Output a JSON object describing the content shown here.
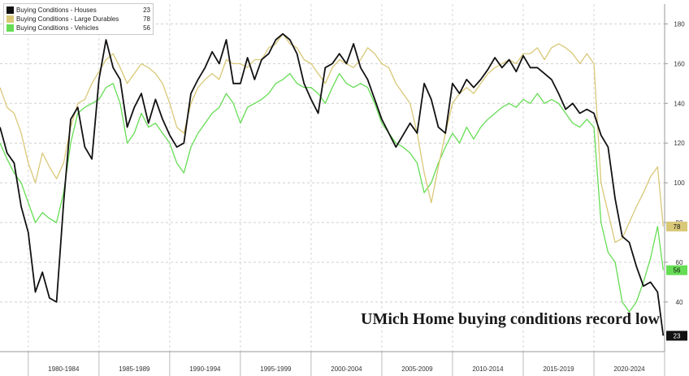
{
  "chart_data": {
    "type": "line",
    "annotation": "UMich Home buying conditions record low",
    "ylim": [
      15,
      190
    ],
    "y_ticks": [
      40,
      60,
      80,
      100,
      120,
      140,
      160,
      180
    ],
    "y_tick_labels": [
      "40",
      "60",
      "80",
      "100",
      "120",
      "140",
      "160",
      "180"
    ],
    "xlim": [
      1978.0,
      2025.0
    ],
    "period_labels": [
      "1980-1984",
      "1985-1989",
      "1990-1994",
      "1995-1999",
      "2000-2004",
      "2005-2009",
      "2010-2014",
      "2015-2019",
      "2020-2024"
    ],
    "grid": true,
    "legend_position": "top-left",
    "series": [
      {
        "name": "Buying Conditions - Houses",
        "last_value": "23",
        "color": "#111111",
        "x": [
          1978.0,
          1978.5,
          1979.0,
          1979.5,
          1980.0,
          1980.5,
          1981.0,
          1981.5,
          1982.0,
          1982.5,
          1983.0,
          1983.5,
          1984.0,
          1984.5,
          1985.0,
          1985.5,
          1986.0,
          1986.5,
          1987.0,
          1987.5,
          1988.0,
          1988.5,
          1989.0,
          1989.5,
          1990.0,
          1990.5,
          1991.0,
          1991.5,
          1992.0,
          1992.5,
          1993.0,
          1993.5,
          1994.0,
          1994.5,
          1995.0,
          1995.5,
          1996.0,
          1996.5,
          1997.0,
          1997.5,
          1998.0,
          1998.5,
          1999.0,
          1999.5,
          2000.0,
          2000.5,
          2001.0,
          2001.5,
          2002.0,
          2002.5,
          2003.0,
          2003.5,
          2004.0,
          2004.5,
          2005.0,
          2005.5,
          2006.0,
          2006.5,
          2007.0,
          2007.5,
          2008.0,
          2008.5,
          2009.0,
          2009.5,
          2010.0,
          2010.5,
          2011.0,
          2011.5,
          2012.0,
          2012.5,
          2013.0,
          2013.5,
          2014.0,
          2014.5,
          2015.0,
          2015.5,
          2016.0,
          2016.5,
          2017.0,
          2017.5,
          2018.0,
          2018.5,
          2019.0,
          2019.5,
          2020.0,
          2020.5,
          2021.0,
          2021.5,
          2022.0,
          2022.5,
          2023.0,
          2023.5,
          2024.0,
          2024.5,
          2024.9
        ],
        "values": [
          128,
          115,
          110,
          88,
          75,
          45,
          55,
          42,
          40,
          90,
          132,
          138,
          118,
          112,
          152,
          172,
          158,
          152,
          128,
          138,
          145,
          130,
          142,
          132,
          124,
          118,
          120,
          145,
          152,
          158,
          166,
          160,
          172,
          150,
          150,
          163,
          152,
          162,
          165,
          172,
          175,
          172,
          165,
          150,
          142,
          135,
          158,
          160,
          165,
          160,
          170,
          158,
          152,
          142,
          132,
          125,
          118,
          124,
          130,
          125,
          150,
          142,
          128,
          125,
          150,
          145,
          152,
          148,
          152,
          157,
          163,
          158,
          162,
          156,
          164,
          158,
          158,
          155,
          152,
          145,
          137,
          140,
          135,
          137,
          135,
          124,
          118,
          92,
          73,
          70,
          58,
          48,
          50,
          45,
          23
        ]
      },
      {
        "name": "Buying Conditions - Large Durables",
        "last_value": "78",
        "color": "#d9c878",
        "x": [
          1978.0,
          1978.5,
          1979.0,
          1979.5,
          1980.0,
          1980.5,
          1981.0,
          1981.5,
          1982.0,
          1982.5,
          1983.0,
          1983.5,
          1984.0,
          1984.5,
          1985.0,
          1985.5,
          1986.0,
          1986.5,
          1987.0,
          1987.5,
          1988.0,
          1988.5,
          1989.0,
          1989.5,
          1990.0,
          1990.5,
          1991.0,
          1991.5,
          1992.0,
          1992.5,
          1993.0,
          1993.5,
          1994.0,
          1994.5,
          1995.0,
          1995.5,
          1996.0,
          1996.5,
          1997.0,
          1997.5,
          1998.0,
          1998.5,
          1999.0,
          1999.5,
          2000.0,
          2000.5,
          2001.0,
          2001.5,
          2002.0,
          2002.5,
          2003.0,
          2003.5,
          2004.0,
          2004.5,
          2005.0,
          2005.5,
          2006.0,
          2006.5,
          2007.0,
          2007.5,
          2008.0,
          2008.5,
          2009.0,
          2009.5,
          2010.0,
          2010.5,
          2011.0,
          2011.5,
          2012.0,
          2012.5,
          2013.0,
          2013.5,
          2014.0,
          2014.5,
          2015.0,
          2015.5,
          2016.0,
          2016.5,
          2017.0,
          2017.5,
          2018.0,
          2018.5,
          2019.0,
          2019.5,
          2020.0,
          2020.5,
          2021.0,
          2021.5,
          2022.0,
          2022.5,
          2023.0,
          2023.5,
          2024.0,
          2024.5,
          2024.9
        ],
        "values": [
          148,
          138,
          135,
          125,
          110,
          100,
          115,
          108,
          102,
          110,
          128,
          140,
          142,
          150,
          156,
          162,
          165,
          158,
          150,
          155,
          160,
          158,
          155,
          150,
          140,
          128,
          125,
          140,
          148,
          152,
          155,
          152,
          162,
          160,
          160,
          158,
          162,
          162,
          168,
          170,
          175,
          170,
          168,
          162,
          160,
          155,
          150,
          158,
          162,
          160,
          158,
          162,
          168,
          165,
          160,
          158,
          150,
          145,
          140,
          125,
          105,
          90,
          108,
          125,
          140,
          145,
          148,
          145,
          150,
          155,
          158,
          160,
          162,
          160,
          165,
          165,
          168,
          162,
          168,
          170,
          168,
          165,
          160,
          165,
          160,
          100,
          85,
          70,
          72,
          80,
          88,
          95,
          103,
          108,
          78
        ]
      },
      {
        "name": "Buying Conditions - Vehicles",
        "last_value": "56",
        "color": "#66dd55",
        "x": [
          1978.0,
          1978.5,
          1979.0,
          1979.5,
          1980.0,
          1980.5,
          1981.0,
          1981.5,
          1982.0,
          1982.5,
          1983.0,
          1983.5,
          1984.0,
          1984.5,
          1985.0,
          1985.5,
          1986.0,
          1986.5,
          1987.0,
          1987.5,
          1988.0,
          1988.5,
          1989.0,
          1989.5,
          1990.0,
          1990.5,
          1991.0,
          1991.5,
          1992.0,
          1992.5,
          1993.0,
          1993.5,
          1994.0,
          1994.5,
          1995.0,
          1995.5,
          1996.0,
          1996.5,
          1997.0,
          1997.5,
          1998.0,
          1998.5,
          1999.0,
          1999.5,
          2000.0,
          2000.5,
          2001.0,
          2001.5,
          2002.0,
          2002.5,
          2003.0,
          2003.5,
          2004.0,
          2004.5,
          2005.0,
          2005.5,
          2006.0,
          2006.5,
          2007.0,
          2007.5,
          2008.0,
          2008.5,
          2009.0,
          2009.5,
          2010.0,
          2010.5,
          2011.0,
          2011.5,
          2012.0,
          2012.5,
          2013.0,
          2013.5,
          2014.0,
          2014.5,
          2015.0,
          2015.5,
          2016.0,
          2016.5,
          2017.0,
          2017.5,
          2018.0,
          2018.5,
          2019.0,
          2019.5,
          2020.0,
          2020.5,
          2021.0,
          2021.5,
          2022.0,
          2022.5,
          2023.0,
          2023.5,
          2024.0,
          2024.5,
          2024.9
        ],
        "values": [
          120,
          112,
          105,
          100,
          90,
          80,
          85,
          82,
          80,
          95,
          120,
          135,
          138,
          140,
          142,
          148,
          150,
          140,
          120,
          125,
          135,
          128,
          130,
          125,
          120,
          110,
          105,
          118,
          125,
          130,
          135,
          138,
          145,
          140,
          130,
          138,
          140,
          142,
          145,
          150,
          152,
          155,
          150,
          148,
          148,
          145,
          140,
          148,
          155,
          150,
          148,
          150,
          148,
          140,
          130,
          125,
          120,
          118,
          115,
          110,
          95,
          100,
          110,
          118,
          125,
          120,
          128,
          122,
          128,
          132,
          135,
          138,
          140,
          138,
          142,
          140,
          145,
          140,
          142,
          140,
          135,
          130,
          128,
          132,
          128,
          80,
          65,
          60,
          40,
          35,
          40,
          50,
          62,
          78,
          56
        ]
      }
    ]
  }
}
